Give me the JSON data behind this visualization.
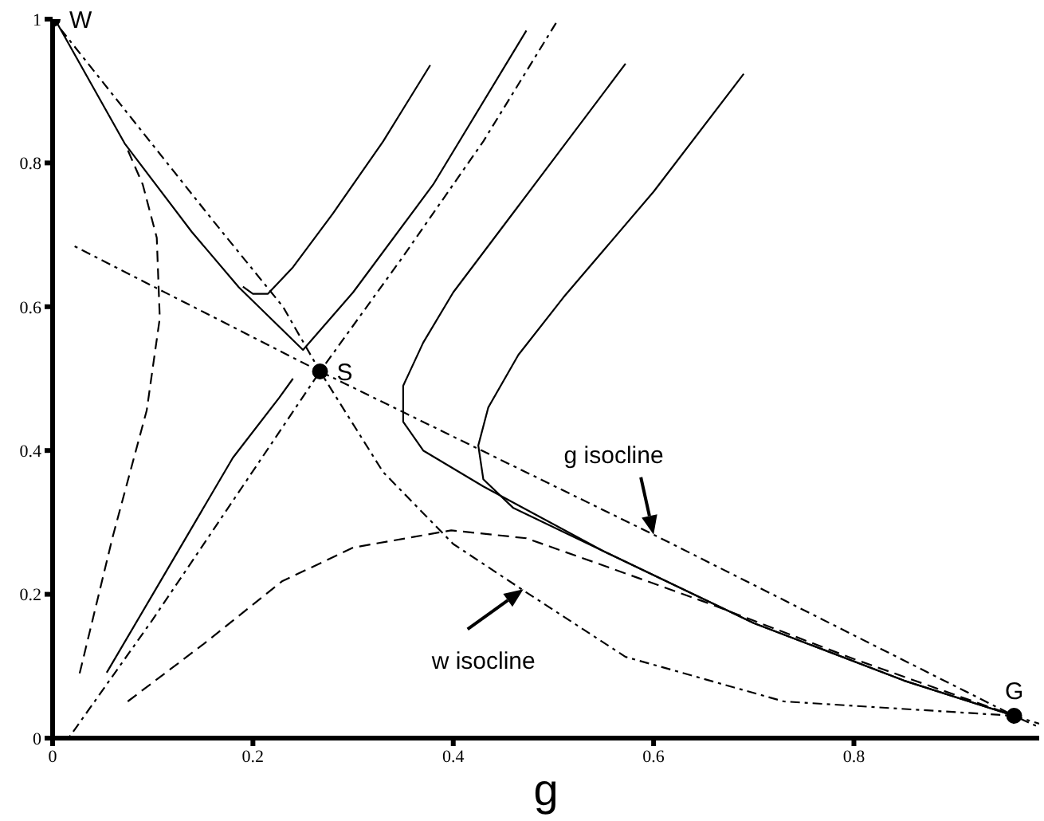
{
  "chart_data": {
    "type": "line",
    "xlabel": "g",
    "xlim": [
      0,
      0.985
    ],
    "ylim": [
      0,
      1
    ],
    "xticks": [
      0,
      0.2,
      0.4,
      0.6,
      0.8
    ],
    "yticks": [
      0,
      0.2,
      0.4,
      0.6,
      0.8,
      1
    ],
    "marker": "none",
    "series": [
      {
        "color": "#000000",
        "line_style": "dotted",
        "x": [
          0.022,
          0.267,
          0.6,
          0.96,
          0.985
        ],
        "values": [
          0.684,
          0.51,
          0.283,
          0.031,
          0.015
        ]
      },
      {
        "color": "#000000",
        "line_style": "dotted",
        "x": [
          0.003,
          0.08,
          0.16,
          0.23,
          0.267,
          0.33,
          0.4,
          0.465,
          0.572,
          0.73,
          0.96,
          0.985
        ],
        "values": [
          0.995,
          0.86,
          0.72,
          0.6,
          0.51,
          0.37,
          0.27,
          0.21,
          0.113,
          0.051,
          0.031,
          0.02
        ]
      },
      {
        "color": "#000000",
        "line_style": "dotted",
        "x": [
          0.016,
          0.1,
          0.18,
          0.267,
          0.35,
          0.43,
          0.505
        ],
        "values": [
          0,
          0.165,
          0.33,
          0.51,
          0.67,
          0.83,
          1
        ]
      },
      {
        "color": "#000000",
        "line_style": "solid",
        "x": [
          0.003,
          0.072,
          0.139,
          0.186,
          0.25,
          0.3,
          0.38,
          0.473
        ],
        "values": [
          0.998,
          0.827,
          0.704,
          0.627,
          0.54,
          0.62,
          0.77,
          0.984
        ]
      },
      {
        "color": "#000000",
        "line_style": "solid",
        "x": [
          0.054,
          0.1,
          0.18,
          0.226,
          0.24
        ],
        "values": [
          0.091,
          0.2,
          0.39,
          0.473,
          0.5
        ]
      },
      {
        "color": "#000000",
        "line_style": "dashed",
        "x": [
          0.027,
          0.06,
          0.094,
          0.107,
          0.104,
          0.09,
          0.075
        ],
        "values": [
          0.09,
          0.28,
          0.456,
          0.584,
          0.696,
          0.77,
          0.818
        ]
      },
      {
        "color": "#000000",
        "line_style": "solid",
        "x": [
          0.377,
          0.33,
          0.28,
          0.24,
          0.215,
          0.2,
          0.19
        ],
        "values": [
          0.936,
          0.83,
          0.73,
          0.655,
          0.618,
          0.618,
          0.628
        ]
      },
      {
        "color": "#000000",
        "line_style": "solid",
        "x": [
          0.572,
          0.465,
          0.4,
          0.37,
          0.35,
          0.35,
          0.37,
          0.43,
          0.55,
          0.7,
          0.85,
          0.96
        ],
        "values": [
          0.938,
          0.74,
          0.62,
          0.55,
          0.49,
          0.44,
          0.4,
          0.35,
          0.26,
          0.16,
          0.08,
          0.031
        ]
      },
      {
        "color": "#000000",
        "line_style": "solid",
        "x": [
          0.69,
          0.6,
          0.51,
          0.465,
          0.435,
          0.425,
          0.43,
          0.46,
          0.55,
          0.7,
          0.85,
          0.96
        ],
        "values": [
          0.924,
          0.76,
          0.613,
          0.533,
          0.46,
          0.407,
          0.36,
          0.32,
          0.26,
          0.16,
          0.08,
          0.031
        ]
      },
      {
        "color": "#000000",
        "line_style": "dashed",
        "x": [
          0.075,
          0.15,
          0.229,
          0.3,
          0.398,
          0.473,
          0.55,
          0.65,
          0.8,
          0.96
        ],
        "values": [
          0.051,
          0.13,
          0.218,
          0.265,
          0.289,
          0.278,
          0.24,
          0.19,
          0.11,
          0.031
        ]
      },
      {
        "type": "scatter",
        "name": "W",
        "color": "#000000",
        "marker": "circle",
        "x": [
          0
        ],
        "values": [
          1
        ]
      },
      {
        "type": "scatter",
        "name": "S",
        "color": "#000000",
        "marker": "circle",
        "x": [
          0.267
        ],
        "values": [
          0.51
        ]
      },
      {
        "type": "scatter",
        "name": "G",
        "color": "#000000",
        "marker": "circle",
        "x": [
          0.96
        ],
        "values": [
          0.031
        ]
      }
    ],
    "annotations": [
      {
        "text": "g isocline",
        "x": 0.6,
        "y": 0.283
      },
      {
        "text": "w isocline",
        "x": 0.47,
        "y": 0.207
      }
    ]
  }
}
